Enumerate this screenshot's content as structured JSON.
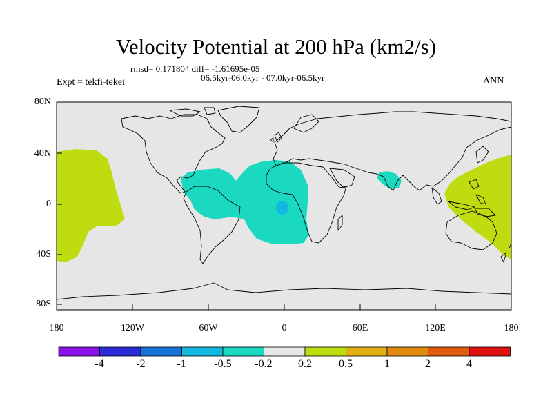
{
  "title": "Velocity Potential at 200 hPa (km2/s)",
  "stats": "rmsd= 0.171804  diff= -1.61695e-05",
  "period": "06.5kyr-06.0kyr - 07.0kyr-06.5kyr",
  "experiment": "Expt = tekfi-tekei",
  "season": "ANN",
  "y_axis_labels": [
    "80N",
    "40N",
    "0",
    "40S",
    "80S"
  ],
  "x_axis_labels": [
    "180",
    "120W",
    "60W",
    "0",
    "60E",
    "120E",
    "180"
  ],
  "colorbar": {
    "colors": [
      "#8c10e8",
      "#2b2bd8",
      "#1573d6",
      "#12b8e0",
      "#1ad9c0",
      "#e6e6e6",
      "#bfdc10",
      "#e0b010",
      "#e08a10",
      "#e05a10",
      "#e01010"
    ],
    "labels": [
      "-4",
      "-2",
      "-1",
      "-0.5",
      "-0.2",
      "0.2",
      "0.5",
      "1",
      "2",
      "4"
    ]
  },
  "map": {
    "background_color": "#e6e6e6",
    "anomaly_regions": [
      {
        "name": "central-pacific-positive",
        "level": "0.2 to 0.5",
        "color": "#bfdc10"
      },
      {
        "name": "west-pacific-positive",
        "level": "0.2 to 0.5",
        "color": "#bfdc10"
      },
      {
        "name": "atlantic-negative",
        "level": "-0.5 to -0.2",
        "color": "#1ad9c0"
      },
      {
        "name": "india-negative",
        "level": "-0.5 to -0.2",
        "color": "#1ad9c0"
      },
      {
        "name": "africa-core-negative",
        "level": "-1 to -0.5",
        "color": "#12b8e0"
      }
    ]
  }
}
